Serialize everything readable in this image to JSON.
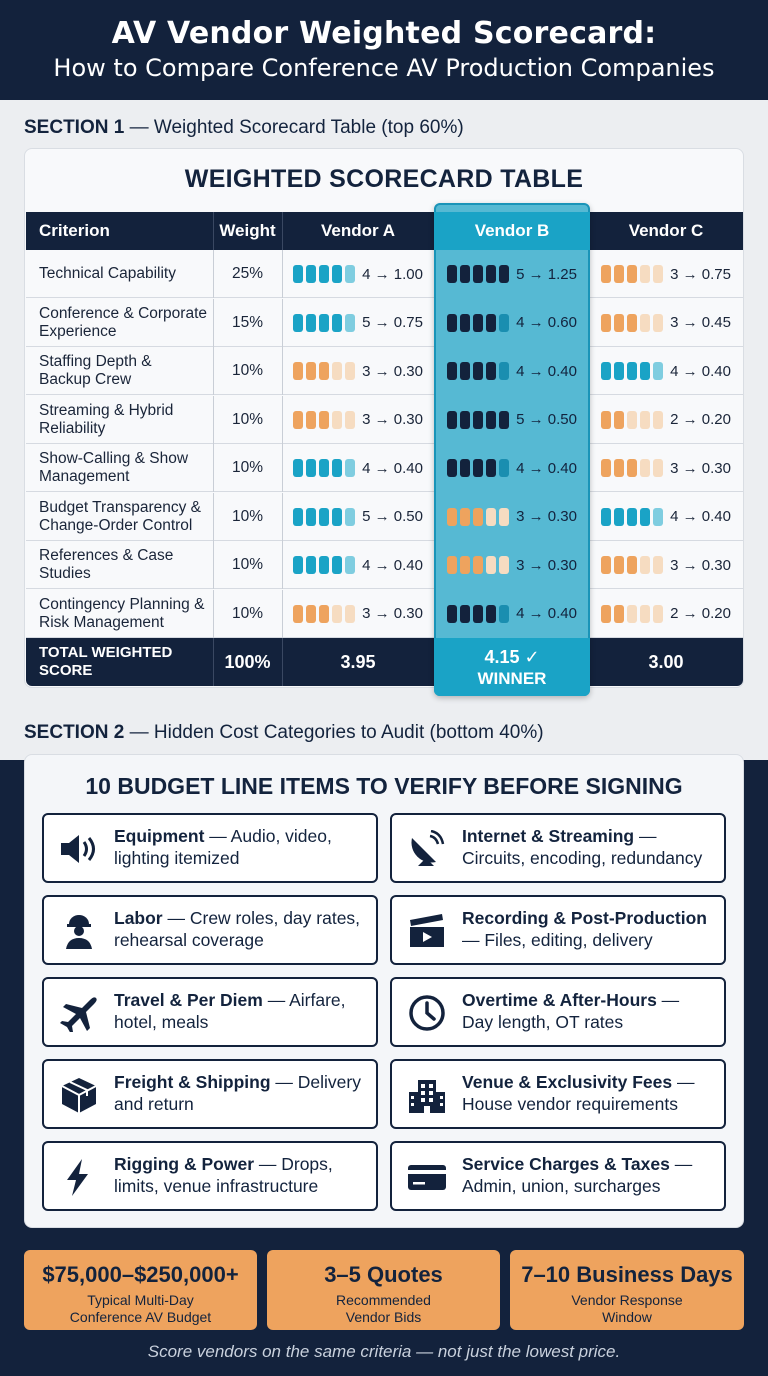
{
  "header": {
    "title": "AV Vendor Weighted Scorecard:",
    "subtitle": "How to Compare Conference AV Production Companies"
  },
  "section1": {
    "label_bold": "SECTION 1",
    "label_rest": " — Weighted Scorecard Table (top 60%)"
  },
  "section2": {
    "label_bold": "SECTION 2",
    "label_rest": " — Hidden Cost Categories to Audit (bottom 40%)"
  },
  "scorecard": {
    "title": "WEIGHTED SCORECARD TABLE",
    "headers": {
      "criterion": "Criterion",
      "weight": "Weight",
      "vendor_a": "Vendor A",
      "vendor_b": "Vendor B",
      "vendor_c": "Vendor C"
    },
    "rows": [
      {
        "criterion": "Technical Capability",
        "weight": "25%",
        "a": "4 → 1.00",
        "b": "5 → 1.25",
        "c": "3 → 0.75"
      },
      {
        "criterion": "Conference & Corporate Experience",
        "weight": "15%",
        "a": "5 → 0.75",
        "b": "4 → 0.60",
        "c": "3 → 0.45"
      },
      {
        "criterion": "Staffing Depth & Backup Crew",
        "weight": "10%",
        "a": "3 → 0.30",
        "b": "4 → 0.40",
        "c": "4 → 0.40"
      },
      {
        "criterion": "Streaming & Hybrid Reliability",
        "weight": "10%",
        "a": "3 → 0.30",
        "b": "5 → 0.50",
        "c": "2 → 0.20"
      },
      {
        "criterion": "Show-Calling & Show Management",
        "weight": "10%",
        "a": "4 → 0.40",
        "b": "4 → 0.40",
        "c": "3 → 0.30"
      },
      {
        "criterion": "Budget Transparency & Change-Order Control",
        "weight": "10%",
        "a": "5 → 0.50",
        "b": "3 → 0.30",
        "c": "4 → 0.40"
      },
      {
        "criterion": "References & Case Studies",
        "weight": "10%",
        "a": "4 → 0.40",
        "b": "3 → 0.30",
        "c": "3 → 0.30"
      },
      {
        "criterion": "Contingency Planning & Risk Management",
        "weight": "10%",
        "a": "3 → 0.30",
        "b": "4 → 0.40",
        "c": "2 → 0.20"
      }
    ],
    "ratings": {
      "a": [
        4,
        5,
        3,
        3,
        4,
        5,
        4,
        3
      ],
      "b": [
        5,
        4,
        4,
        5,
        4,
        3,
        3,
        4
      ],
      "c": [
        3,
        3,
        4,
        2,
        3,
        4,
        3,
        2
      ]
    },
    "total": {
      "label": "TOTAL WEIGHTED SCORE",
      "weight": "100%",
      "a": "3.95",
      "b": "4.15 ✓",
      "b_tag": "WINNER",
      "c": "3.00"
    },
    "colors": {
      "high_strong": "#1aa3c6",
      "high_light": "#7fcde0",
      "high_dark_strong": "#13223c",
      "high_dark_light": "#1a8eb0",
      "low_strong": "#eea35e",
      "low_light": "#f6dcc1"
    }
  },
  "budget": {
    "title": "10 BUDGET LINE ITEMS TO VERIFY BEFORE SIGNING",
    "items": [
      {
        "icon": "speaker-icon",
        "bold": "Equipment",
        "rest": " — Audio, video, lighting itemized"
      },
      {
        "icon": "satellite-dish-icon",
        "bold": "Internet & Streaming",
        "rest": " — Circuits, encoding, redundancy"
      },
      {
        "icon": "worker-icon",
        "bold": "Labor",
        "rest": " — Crew roles, day rates, rehearsal coverage"
      },
      {
        "icon": "clapperboard-icon",
        "bold": "Recording & Post-Production",
        "rest": " — Files, editing, delivery"
      },
      {
        "icon": "airplane-icon",
        "bold": "Travel & Per Diem",
        "rest": " — Airfare, hotel, meals"
      },
      {
        "icon": "clock-icon",
        "bold": "Overtime & After-Hours",
        "rest": " — Day length, OT rates"
      },
      {
        "icon": "box-icon",
        "bold": "Freight & Shipping",
        "rest": " — Delivery and return"
      },
      {
        "icon": "building-icon",
        "bold": "Venue & Exclusivity Fees",
        "rest": " — House vendor requirements"
      },
      {
        "icon": "lightning-icon",
        "bold": "Rigging & Power",
        "rest": " — Drops, limits, venue infrastructure"
      },
      {
        "icon": "credit-card-icon",
        "bold": "Service Charges & Taxes",
        "rest": " — Admin, union, surcharges"
      }
    ]
  },
  "stats": [
    {
      "big": "$75,000–$250,000+",
      "small1": "Typical Multi-Day",
      "small2": "Conference AV Budget"
    },
    {
      "big": "3–5 Quotes",
      "small1": "Recommended",
      "small2": "Vendor Bids"
    },
    {
      "big": "7–10 Business Days",
      "small1": "Vendor Response",
      "small2": "Window"
    }
  ],
  "footer": "Score vendors on the same criteria — not just the lowest price."
}
